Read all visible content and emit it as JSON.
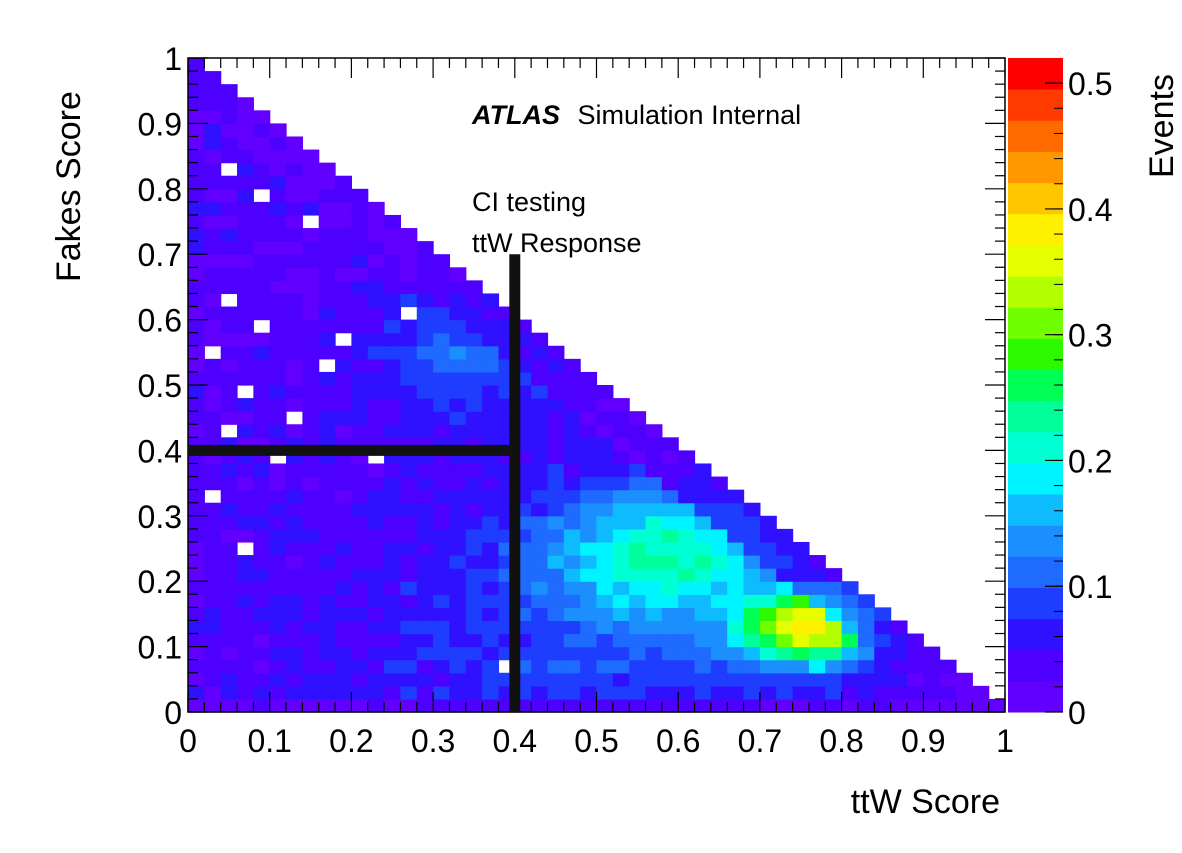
{
  "chart_data": {
    "type": "heatmap",
    "title": "",
    "xlabel": "ttW Score",
    "ylabel": "Fakes Score",
    "xlim": [
      0,
      1
    ],
    "ylim": [
      0,
      1
    ],
    "x_ticks": [
      "0",
      "0.1",
      "0.2",
      "0.3",
      "0.4",
      "0.5",
      "0.6",
      "0.7",
      "0.8",
      "0.9",
      "1"
    ],
    "y_ticks": [
      "0",
      "0.1",
      "0.2",
      "0.3",
      "0.4",
      "0.5",
      "0.6",
      "0.7",
      "0.8",
      "0.9",
      "1"
    ],
    "bins": {
      "x": 50,
      "y": 50
    },
    "colorbar": {
      "label": "Events",
      "range": [
        0,
        0.52
      ],
      "ticks": [
        "0",
        "0.1",
        "0.2",
        "0.3",
        "0.4",
        "0.5"
      ],
      "palette": [
        "#6200ff",
        "#4e00ff",
        "#2f10ff",
        "#1f3dff",
        "#1f6aff",
        "#1c8fff",
        "#0fbbff",
        "#00f4ff",
        "#00ffd2",
        "#00ff9a",
        "#00ff54",
        "#2cf800",
        "#71ff00",
        "#b3ff00",
        "#e5ff00",
        "#fff000",
        "#ffc600",
        "#ff9700",
        "#ff6a00",
        "#ff3a00",
        "#ff0000"
      ]
    },
    "cut_lines": [
      {
        "x": [
          0,
          0.4
        ],
        "y": [
          0.4,
          0.4
        ]
      },
      {
        "x": [
          0.4,
          0.4
        ],
        "y": [
          0,
          0.7
        ]
      }
    ],
    "annotations": {
      "atlas": "ATLAS",
      "simulation": "Simulation Internal",
      "line1": "CI testing",
      "line2": "ttW Response"
    }
  }
}
